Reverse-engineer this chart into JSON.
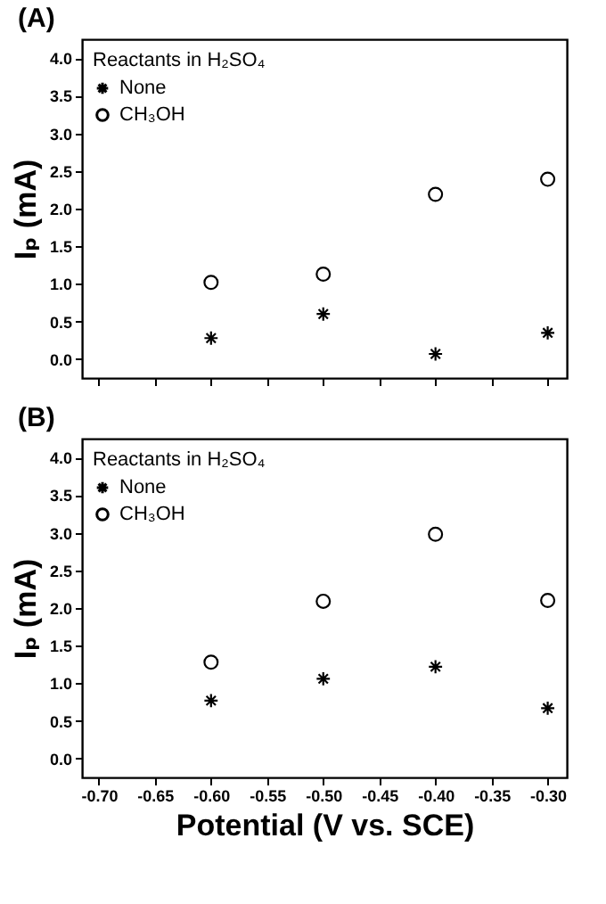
{
  "chart_data": [
    {
      "type": "scatter",
      "title": "(A)",
      "ylabel": "Iₚ (mA)",
      "legend_title": "Reactants in H₂SO₄",
      "legend": "top left",
      "grid": false,
      "tick_labels": "y",
      "x": [
        -0.6,
        -0.5,
        -0.4,
        -0.3
      ],
      "xlim": [
        -0.715,
        -0.283
      ],
      "ylim": [
        -0.25,
        4.25
      ],
      "xticks": [
        {
          "value": -0.7,
          "label": null
        },
        {
          "value": -0.65,
          "label": null
        },
        {
          "value": -0.6,
          "label": null
        },
        {
          "value": -0.55,
          "label": null
        },
        {
          "value": -0.5,
          "label": null
        },
        {
          "value": -0.45,
          "label": null
        },
        {
          "value": -0.4,
          "label": null
        },
        {
          "value": -0.35,
          "label": null
        },
        {
          "value": -0.3,
          "label": null
        }
      ],
      "yticks": [
        {
          "value": 0,
          "label": "0.0"
        },
        {
          "value": 0.5,
          "label": "0.5"
        },
        {
          "value": 1,
          "label": "1.0"
        },
        {
          "value": 1.5,
          "label": "1.5"
        },
        {
          "value": 2,
          "label": "2.0"
        },
        {
          "value": 2.5,
          "label": "2.5"
        },
        {
          "value": 3,
          "label": "3.0"
        },
        {
          "value": 3.5,
          "label": "3.5"
        },
        {
          "value": 4,
          "label": "4.0"
        }
      ],
      "series": [
        {
          "name": "None",
          "color": "#000000",
          "marker": "cross",
          "values": [
            0.28,
            0.6,
            0.07,
            0.35
          ]
        },
        {
          "name": "CH₃OH",
          "color": "#000000",
          "marker": "circle",
          "values": [
            1.02,
            1.13,
            2.19,
            2.39
          ]
        }
      ]
    },
    {
      "type": "scatter",
      "title": "(B)",
      "xlabel": "Potential (V vs. SCE)",
      "ylabel": "Iₚ (mA)",
      "legend_title": "Reactants in H₂SO₄",
      "legend": "top left",
      "grid": false,
      "x": [
        -0.6,
        -0.5,
        -0.4,
        -0.3
      ],
      "xlim": [
        -0.715,
        -0.283
      ],
      "ylim": [
        -0.25,
        4.25
      ],
      "xticks": [
        {
          "value": -0.7,
          "label": "-0.70"
        },
        {
          "value": -0.65,
          "label": "-0.65"
        },
        {
          "value": -0.6,
          "label": "-0.60"
        },
        {
          "value": -0.55,
          "label": "-0.55"
        },
        {
          "value": -0.5,
          "label": "-0.50"
        },
        {
          "value": -0.45,
          "label": "-0.45"
        },
        {
          "value": -0.4,
          "label": "-0.40"
        },
        {
          "value": -0.35,
          "label": "-0.35"
        },
        {
          "value": -0.3,
          "label": "-0.30"
        }
      ],
      "yticks": [
        {
          "value": 0,
          "label": "0.0"
        },
        {
          "value": 0.5,
          "label": "0.5"
        },
        {
          "value": 1,
          "label": "1.0"
        },
        {
          "value": 1.5,
          "label": "1.5"
        },
        {
          "value": 2,
          "label": "2.0"
        },
        {
          "value": 2.5,
          "label": "2.5"
        },
        {
          "value": 3,
          "label": "3.0"
        },
        {
          "value": 3.5,
          "label": "3.5"
        },
        {
          "value": 4,
          "label": "4.0"
        }
      ],
      "series": [
        {
          "name": "None",
          "color": "#000000",
          "marker": "cross",
          "values": [
            0.77,
            1.06,
            1.22,
            0.67
          ]
        },
        {
          "name": "CH₃OH",
          "color": "#000000",
          "marker": "circle",
          "values": [
            1.28,
            2.09,
            2.98,
            2.1
          ]
        }
      ]
    }
  ]
}
